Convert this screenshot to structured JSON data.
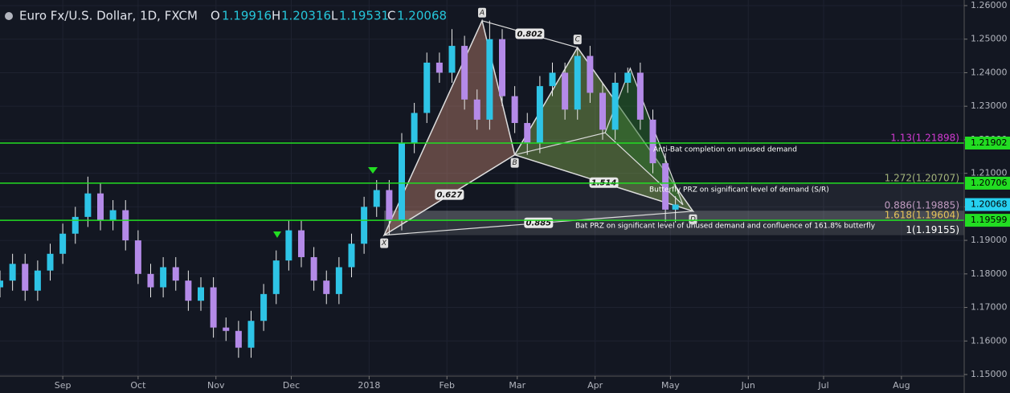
{
  "header": {
    "symbol": "Euro Fx/U.S. Dollar, 1D, FXCM",
    "o_label": "O",
    "h_label": "H",
    "l_label": "L",
    "c_label": "C"
  },
  "chart_data": {
    "type": "candlestick",
    "x": [
      6,
      11,
      16,
      21,
      26,
      31,
      36,
      41,
      46,
      51,
      56,
      61,
      66,
      71,
      76,
      81,
      86,
      91,
      96,
      101,
      106,
      111,
      116,
      121,
      126,
      131,
      136,
      141,
      146,
      151,
      156,
      161,
      166,
      171,
      176,
      181,
      186,
      191,
      196,
      201,
      206,
      211,
      216,
      221,
      226,
      231,
      236,
      241,
      246,
      251,
      256,
      261,
      266,
      271,
      275
    ],
    "open": [
      1.176,
      1.178,
      1.183,
      1.175,
      1.181,
      1.186,
      1.192,
      1.197,
      1.204,
      1.196,
      1.199,
      1.19,
      1.18,
      1.176,
      1.182,
      1.178,
      1.172,
      1.176,
      1.164,
      1.163,
      1.158,
      1.166,
      1.174,
      1.184,
      1.193,
      1.185,
      1.178,
      1.174,
      1.182,
      1.189,
      1.2,
      1.205,
      1.196,
      1.219,
      1.228,
      1.243,
      1.24,
      1.248,
      1.232,
      1.226,
      1.25,
      1.233,
      1.225,
      1.219,
      1.236,
      1.24,
      1.229,
      1.245,
      1.234,
      1.223,
      1.237,
      1.24,
      1.226,
      1.213,
      1.19916
    ],
    "high": [
      1.181,
      1.186,
      1.186,
      1.184,
      1.189,
      1.195,
      1.2,
      1.209,
      1.207,
      1.202,
      1.202,
      1.193,
      1.183,
      1.185,
      1.185,
      1.181,
      1.179,
      1.179,
      1.167,
      1.166,
      1.169,
      1.177,
      1.187,
      1.196,
      1.196,
      1.188,
      1.181,
      1.185,
      1.192,
      1.203,
      1.208,
      1.208,
      1.222,
      1.231,
      1.246,
      1.246,
      1.253,
      1.251,
      1.235,
      1.2555,
      1.253,
      1.236,
      1.228,
      1.239,
      1.243,
      1.243,
      1.2475,
      1.248,
      1.237,
      1.24,
      1.2415,
      1.243,
      1.229,
      1.216,
      1.20316
    ],
    "low": [
      1.173,
      1.175,
      1.172,
      1.172,
      1.178,
      1.183,
      1.189,
      1.194,
      1.193,
      1.193,
      1.187,
      1.177,
      1.173,
      1.173,
      1.175,
      1.169,
      1.169,
      1.161,
      1.16,
      1.155,
      1.155,
      1.163,
      1.171,
      1.181,
      1.182,
      1.175,
      1.171,
      1.171,
      1.179,
      1.186,
      1.197,
      1.1916,
      1.193,
      1.216,
      1.225,
      1.237,
      1.237,
      1.229,
      1.223,
      1.223,
      1.23,
      1.222,
      1.2155,
      1.216,
      1.233,
      1.226,
      1.226,
      1.231,
      1.22,
      1.22,
      1.234,
      1.223,
      1.21,
      1.1955,
      1.19531
    ],
    "close": [
      1.178,
      1.183,
      1.175,
      1.181,
      1.186,
      1.192,
      1.197,
      1.204,
      1.196,
      1.199,
      1.19,
      1.18,
      1.176,
      1.182,
      1.178,
      1.172,
      1.176,
      1.164,
      1.163,
      1.158,
      1.166,
      1.174,
      1.184,
      1.193,
      1.185,
      1.178,
      1.174,
      1.182,
      1.189,
      1.2,
      1.205,
      1.196,
      1.219,
      1.228,
      1.243,
      1.24,
      1.248,
      1.232,
      1.226,
      1.25,
      1.233,
      1.225,
      1.219,
      1.236,
      1.24,
      1.229,
      1.245,
      1.234,
      1.223,
      1.237,
      1.24,
      1.226,
      1.213,
      1.19916,
      1.20068
    ],
    "up_color": "#2ec4e6",
    "down_color": "#b48ae8",
    "xlim": [
      6,
      390
    ],
    "xticks": [
      {
        "value": 31,
        "label": "Sep"
      },
      {
        "value": 61,
        "label": "Oct"
      },
      {
        "value": 92,
        "label": "Nov"
      },
      {
        "value": 122,
        "label": "Dec"
      },
      {
        "value": 153,
        "label": "2018"
      },
      {
        "value": 184,
        "label": "Feb"
      },
      {
        "value": 212,
        "label": "Mar"
      },
      {
        "value": 243,
        "label": "Apr"
      },
      {
        "value": 273,
        "label": "May"
      },
      {
        "value": 304,
        "label": "Jun"
      },
      {
        "value": 334,
        "label": "Jul"
      },
      {
        "value": 365,
        "label": "Aug"
      }
    ],
    "ylim": [
      1.15,
      1.26
    ],
    "yticks": [
      {
        "value": 1.15,
        "label": "1.15000"
      },
      {
        "value": 1.16,
        "label": "1.16000"
      },
      {
        "value": 1.17,
        "label": "1.17000"
      },
      {
        "value": 1.18,
        "label": "1.18000"
      },
      {
        "value": 1.19,
        "label": "1.19000"
      },
      {
        "value": 1.2,
        "label": "1.20000"
      },
      {
        "value": 1.21,
        "label": "1.21000"
      },
      {
        "value": 1.22,
        "label": "1.22000"
      },
      {
        "value": 1.23,
        "label": "1.23000"
      },
      {
        "value": 1.24,
        "label": "1.24000"
      },
      {
        "value": 1.25,
        "label": "1.25000"
      },
      {
        "value": 1.26,
        "label": "1.26000"
      }
    ],
    "grid": true,
    "hlines": {
      "values": [
        1.21902,
        1.20706,
        1.19599
      ],
      "color": "#22dd22"
    },
    "fib_levels": [
      {
        "label": "1.13(1.21898)",
        "value": 1.21898,
        "color": "#d13bd1"
      },
      {
        "label": "1.272(1.20707)",
        "value": 1.20707,
        "color": "#a3b37a"
      },
      {
        "label": "0.886(1.19885)",
        "value": 1.19885,
        "color": "#c09ac0"
      },
      {
        "label": "1.618(1.19604)",
        "value": 1.19604,
        "color": "#e6c35a"
      },
      {
        "label": "1(1.19155)",
        "value": 1.19155,
        "color": "#ffffff"
      }
    ],
    "pattern": {
      "labels": [
        "X",
        "A",
        "B",
        "C",
        "D"
      ],
      "x": [
        159,
        198,
        211,
        236,
        282
      ],
      "y": [
        1.19155,
        1.2555,
        1.2155,
        1.2475,
        1.1987
      ]
    },
    "pattern2": {
      "x": [
        247,
        257,
        278
      ],
      "y": [
        1.2221,
        1.2413,
        1.2006
      ]
    },
    "ratios": [
      0.627,
      0.802,
      1.514,
      0.885
    ],
    "notes": [
      "Anti-Bat completion on unused demand",
      "Butterfly PRZ on significant level of demand (S/R)",
      "Bat PRZ on significant level of unused demand and confluence of 161.8% butterfly"
    ]
  }
}
